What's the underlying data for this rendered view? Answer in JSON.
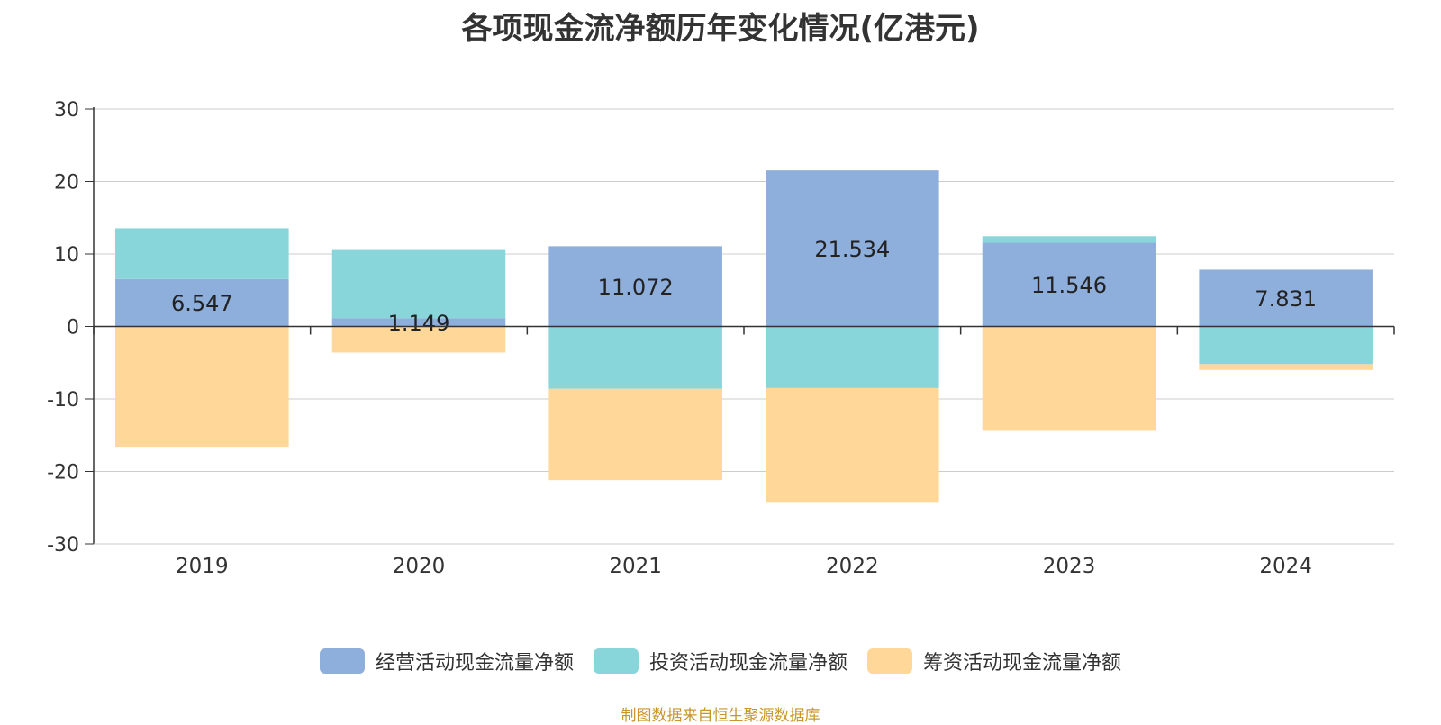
{
  "chart_data": {
    "type": "bar",
    "stacked": true,
    "title": "各项现金流净额历年变化情况(亿港元)",
    "categories": [
      "2019",
      "2020",
      "2021",
      "2022",
      "2023",
      "2024"
    ],
    "series": [
      {
        "name": "经营活动现金流量净额",
        "color": "#8eaedb",
        "values": [
          6.547,
          1.149,
          11.072,
          21.534,
          11.546,
          7.831
        ],
        "labels": [
          "6.547",
          "1.149",
          "11.072",
          "21.534",
          "11.546",
          "7.831"
        ]
      },
      {
        "name": "投资活动现金流量净额",
        "color": "#88d6d9",
        "values": [
          7.0,
          9.4,
          -8.6,
          -8.5,
          0.9,
          -5.2
        ]
      },
      {
        "name": "筹资活动现金流量净额",
        "color": "#ffd899",
        "values": [
          -16.6,
          -3.6,
          -12.6,
          -15.7,
          -14.4,
          -0.8
        ]
      }
    ],
    "yticks": [
      "30",
      "20",
      "10",
      "0",
      "-10",
      "-20",
      "-30"
    ],
    "ylim": [
      -30,
      30
    ],
    "grid": true,
    "legend_position": "bottom"
  },
  "source": "制图数据来自恒生聚源数据库"
}
